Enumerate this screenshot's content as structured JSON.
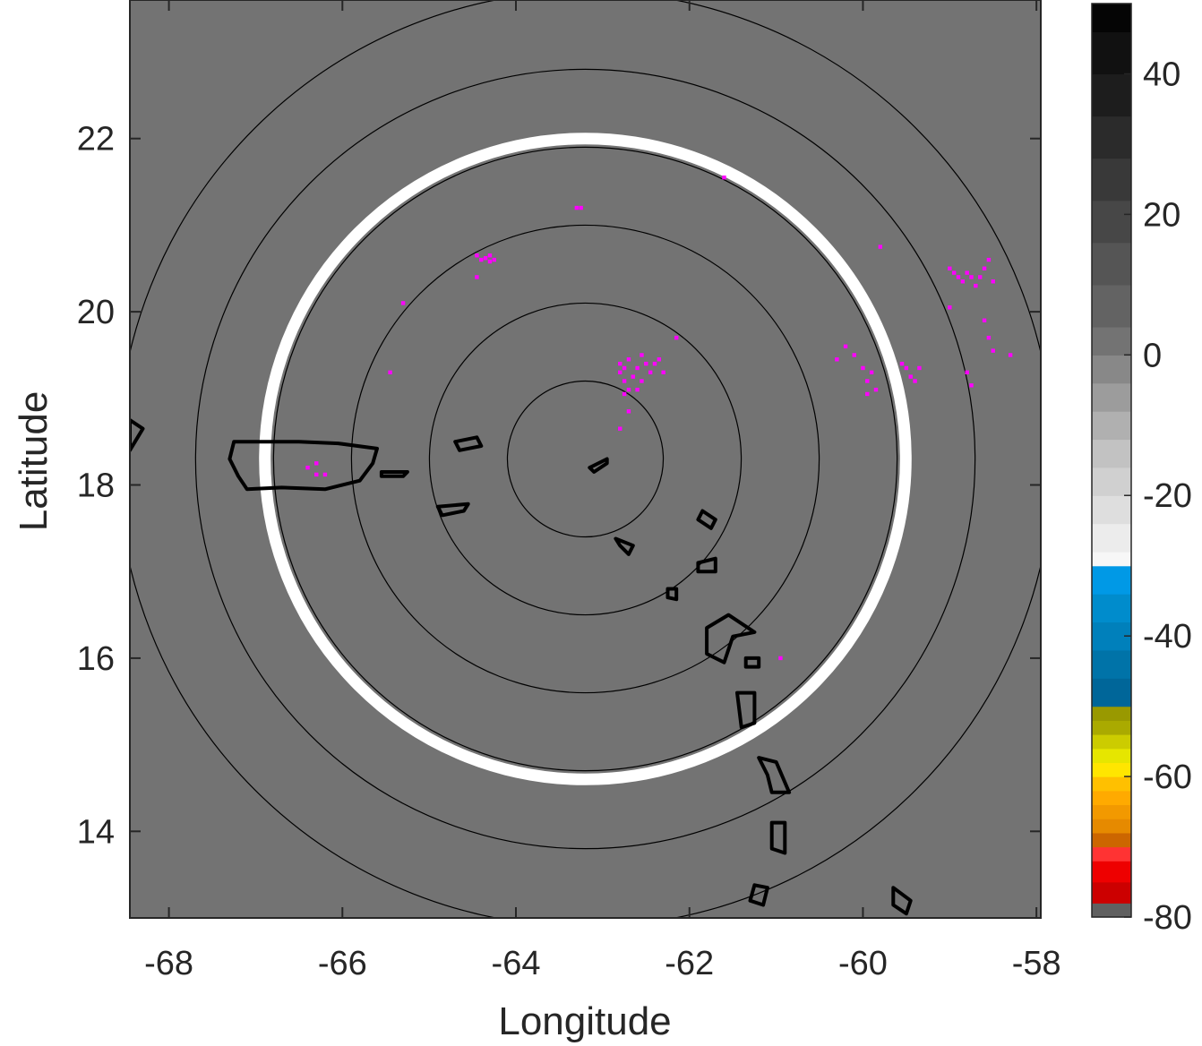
{
  "chart_data": {
    "type": "map",
    "xlabel": "Longitude",
    "ylabel": "Latitude",
    "xlim": [
      -68.45,
      -57.95
    ],
    "ylim": [
      13.0,
      23.6
    ],
    "xticks": [
      -68,
      -66,
      -64,
      -62,
      -60,
      -58
    ],
    "yticks": [
      14,
      16,
      18,
      20,
      22
    ],
    "background_color": "#737373",
    "range_rings": {
      "center": [
        -63.2,
        18.3
      ],
      "radii_deg_lat": [
        0.9,
        1.8,
        2.7,
        3.6,
        4.5,
        5.4
      ],
      "ring_color": "#000000",
      "highlight_ring": {
        "radius_deg_lat": 3.7,
        "color": "#ffffff"
      }
    },
    "islands": [
      {
        "name": "Puerto Rico",
        "outline": [
          [
            -67.25,
            18.5
          ],
          [
            -66.9,
            18.5
          ],
          [
            -66.5,
            18.5
          ],
          [
            -66.05,
            18.48
          ],
          [
            -65.6,
            18.42
          ],
          [
            -65.65,
            18.25
          ],
          [
            -65.8,
            18.05
          ],
          [
            -66.2,
            17.95
          ],
          [
            -66.7,
            17.97
          ],
          [
            -67.1,
            17.95
          ],
          [
            -67.2,
            18.1
          ],
          [
            -67.3,
            18.3
          ]
        ]
      },
      {
        "name": "Hispaniola edge",
        "outline": [
          [
            -68.45,
            18.75
          ],
          [
            -68.3,
            18.65
          ],
          [
            -68.45,
            18.4
          ]
        ]
      },
      {
        "name": "Vieques",
        "outline": [
          [
            -65.55,
            18.15
          ],
          [
            -65.25,
            18.15
          ],
          [
            -65.3,
            18.1
          ],
          [
            -65.55,
            18.1
          ]
        ]
      },
      {
        "name": "St Thomas / St John",
        "outline": [
          [
            -64.7,
            18.5
          ],
          [
            -64.45,
            18.55
          ],
          [
            -64.4,
            18.45
          ],
          [
            -64.65,
            18.4
          ]
        ]
      },
      {
        "name": "St Croix",
        "outline": [
          [
            -64.9,
            17.75
          ],
          [
            -64.55,
            17.78
          ],
          [
            -64.6,
            17.7
          ],
          [
            -64.85,
            17.65
          ]
        ]
      },
      {
        "name": "Anguilla",
        "outline": [
          [
            -63.15,
            18.2
          ],
          [
            -62.95,
            18.3
          ],
          [
            -62.95,
            18.25
          ],
          [
            -63.1,
            18.15
          ]
        ]
      },
      {
        "name": "Barbuda",
        "outline": [
          [
            -61.85,
            17.7
          ],
          [
            -61.7,
            17.6
          ],
          [
            -61.75,
            17.5
          ],
          [
            -61.9,
            17.6
          ]
        ]
      },
      {
        "name": "Antigua",
        "outline": [
          [
            -61.9,
            17.1
          ],
          [
            -61.7,
            17.15
          ],
          [
            -61.7,
            17.0
          ],
          [
            -61.9,
            17.0
          ]
        ]
      },
      {
        "name": "St Kitts",
        "outline": [
          [
            -62.85,
            17.38
          ],
          [
            -62.65,
            17.3
          ],
          [
            -62.7,
            17.2
          ],
          [
            -62.8,
            17.3
          ]
        ]
      },
      {
        "name": "Montserrat",
        "outline": [
          [
            -62.25,
            16.8
          ],
          [
            -62.15,
            16.8
          ],
          [
            -62.15,
            16.68
          ],
          [
            -62.25,
            16.7
          ]
        ]
      },
      {
        "name": "Guadeloupe",
        "outline": [
          [
            -61.8,
            16.35
          ],
          [
            -61.55,
            16.5
          ],
          [
            -61.25,
            16.3
          ],
          [
            -61.5,
            16.25
          ],
          [
            -61.6,
            15.95
          ],
          [
            -61.8,
            16.05
          ]
        ]
      },
      {
        "name": "Marie-Galante",
        "outline": [
          [
            -61.35,
            16.0
          ],
          [
            -61.2,
            16.0
          ],
          [
            -61.2,
            15.9
          ],
          [
            -61.35,
            15.9
          ]
        ]
      },
      {
        "name": "Dominica",
        "outline": [
          [
            -61.45,
            15.6
          ],
          [
            -61.25,
            15.6
          ],
          [
            -61.25,
            15.25
          ],
          [
            -61.4,
            15.2
          ]
        ]
      },
      {
        "name": "Martinique",
        "outline": [
          [
            -61.2,
            14.85
          ],
          [
            -61.0,
            14.8
          ],
          [
            -60.85,
            14.45
          ],
          [
            -61.05,
            14.45
          ],
          [
            -61.1,
            14.65
          ]
        ]
      },
      {
        "name": "St Lucia",
        "outline": [
          [
            -61.05,
            14.1
          ],
          [
            -60.9,
            14.1
          ],
          [
            -60.9,
            13.75
          ],
          [
            -61.05,
            13.8
          ]
        ]
      },
      {
        "name": "St Vincent",
        "outline": [
          [
            -61.25,
            13.38
          ],
          [
            -61.1,
            13.35
          ],
          [
            -61.15,
            13.15
          ],
          [
            -61.3,
            13.2
          ]
        ]
      },
      {
        "name": "Barbados",
        "outline": [
          [
            -59.65,
            13.35
          ],
          [
            -59.45,
            13.2
          ],
          [
            -59.5,
            13.05
          ],
          [
            -59.65,
            13.15
          ]
        ]
      }
    ],
    "echo_points": {
      "color": "#ff00ff",
      "points": [
        [
          -66.4,
          18.2
        ],
        [
          -66.3,
          18.25
        ],
        [
          -66.3,
          18.12
        ],
        [
          -66.2,
          18.12
        ],
        [
          -65.3,
          20.1
        ],
        [
          -65.45,
          19.3
        ],
        [
          -64.45,
          20.65
        ],
        [
          -64.4,
          20.6
        ],
        [
          -64.35,
          20.62
        ],
        [
          -64.3,
          20.58
        ],
        [
          -64.3,
          20.65
        ],
        [
          -64.25,
          20.6
        ],
        [
          -64.45,
          20.4
        ],
        [
          -63.3,
          21.2
        ],
        [
          -63.25,
          21.2
        ],
        [
          -61.6,
          21.55
        ],
        [
          -62.15,
          19.7
        ],
        [
          -62.8,
          19.3
        ],
        [
          -62.75,
          19.35
        ],
        [
          -62.7,
          19.45
        ],
        [
          -62.75,
          19.2
        ],
        [
          -62.7,
          19.1
        ],
        [
          -62.75,
          19.05
        ],
        [
          -62.65,
          19.25
        ],
        [
          -62.6,
          19.35
        ],
        [
          -62.55,
          19.5
        ],
        [
          -62.5,
          19.4
        ],
        [
          -62.45,
          19.3
        ],
        [
          -62.4,
          19.4
        ],
        [
          -62.35,
          19.45
        ],
        [
          -62.3,
          19.3
        ],
        [
          -62.7,
          18.85
        ],
        [
          -62.8,
          18.65
        ],
        [
          -62.8,
          19.4
        ],
        [
          -62.55,
          19.2
        ],
        [
          -62.6,
          19.1
        ],
        [
          -59.8,
          20.75
        ],
        [
          -60.2,
          19.6
        ],
        [
          -60.3,
          19.45
        ],
        [
          -60.1,
          19.5
        ],
        [
          -60.0,
          19.35
        ],
        [
          -59.95,
          19.2
        ],
        [
          -59.9,
          19.3
        ],
        [
          -59.85,
          19.1
        ],
        [
          -59.95,
          19.05
        ],
        [
          -59.55,
          19.4
        ],
        [
          -59.5,
          19.35
        ],
        [
          -59.45,
          19.25
        ],
        [
          -59.4,
          19.2
        ],
        [
          -59.35,
          19.35
        ],
        [
          -59.0,
          20.5
        ],
        [
          -58.95,
          20.45
        ],
        [
          -58.9,
          20.4
        ],
        [
          -58.85,
          20.35
        ],
        [
          -58.8,
          20.45
        ],
        [
          -58.75,
          20.4
        ],
        [
          -58.7,
          20.3
        ],
        [
          -58.65,
          20.4
        ],
        [
          -58.6,
          20.5
        ],
        [
          -58.55,
          20.6
        ],
        [
          -58.5,
          20.35
        ],
        [
          -58.6,
          19.9
        ],
        [
          -58.55,
          19.7
        ],
        [
          -58.5,
          19.55
        ],
        [
          -58.8,
          19.3
        ],
        [
          -58.75,
          19.15
        ],
        [
          -58.3,
          19.5
        ],
        [
          -59.0,
          20.05
        ],
        [
          -60.95,
          16.0
        ]
      ]
    },
    "colorbar": {
      "ticks": [
        40,
        20,
        0,
        -20,
        -40,
        -60,
        -80
      ],
      "range": [
        -80,
        50
      ],
      "segments": [
        {
          "from": -80,
          "to": -78,
          "color": "#606060"
        },
        {
          "from": -78,
          "to": -75,
          "color": "#cc0000"
        },
        {
          "from": -75,
          "to": -72,
          "color": "#ee0000"
        },
        {
          "from": -72,
          "to": -70,
          "color": "#ff3333"
        },
        {
          "from": -70,
          "to": -68,
          "color": "#cc6600"
        },
        {
          "from": -68,
          "to": -66,
          "color": "#e68a00"
        },
        {
          "from": -66,
          "to": -64,
          "color": "#f29900"
        },
        {
          "from": -64,
          "to": -62,
          "color": "#ffaa00"
        },
        {
          "from": -62,
          "to": -60,
          "color": "#ffc000"
        },
        {
          "from": -60,
          "to": -58,
          "color": "#ffe600"
        },
        {
          "from": -58,
          "to": -56,
          "color": "#e6e600"
        },
        {
          "from": -56,
          "to": -54,
          "color": "#cccc00"
        },
        {
          "from": -54,
          "to": -52,
          "color": "#aaaa00"
        },
        {
          "from": -52,
          "to": -50,
          "color": "#999900"
        },
        {
          "from": -50,
          "to": -46,
          "color": "#006699"
        },
        {
          "from": -46,
          "to": -42,
          "color": "#0073a8"
        },
        {
          "from": -42,
          "to": -38,
          "color": "#0080bb"
        },
        {
          "from": -38,
          "to": -34,
          "color": "#008ccc"
        },
        {
          "from": -34,
          "to": -30,
          "color": "#0099e6"
        },
        {
          "from": -30,
          "to": -28,
          "color": "#f7f7f7"
        },
        {
          "from": -28,
          "to": -24,
          "color": "#ececec"
        },
        {
          "from": -24,
          "to": -20,
          "color": "#dedede"
        },
        {
          "from": -20,
          "to": -16,
          "color": "#d0d0d0"
        },
        {
          "from": -16,
          "to": -12,
          "color": "#c2c2c2"
        },
        {
          "from": -12,
          "to": -8,
          "color": "#b0b0b0"
        },
        {
          "from": -8,
          "to": -4,
          "color": "#9c9c9c"
        },
        {
          "from": -4,
          "to": 0,
          "color": "#888888"
        },
        {
          "from": 0,
          "to": 4,
          "color": "#737373"
        },
        {
          "from": 4,
          "to": 10,
          "color": "#636363"
        },
        {
          "from": 10,
          "to": 16,
          "color": "#555555"
        },
        {
          "from": 16,
          "to": 22,
          "color": "#474747"
        },
        {
          "from": 22,
          "to": 28,
          "color": "#393939"
        },
        {
          "from": 28,
          "to": 34,
          "color": "#2b2b2b"
        },
        {
          "from": 34,
          "to": 40,
          "color": "#1d1d1d"
        },
        {
          "from": 40,
          "to": 46,
          "color": "#111111"
        },
        {
          "from": 46,
          "to": 50,
          "color": "#050505"
        }
      ]
    }
  }
}
